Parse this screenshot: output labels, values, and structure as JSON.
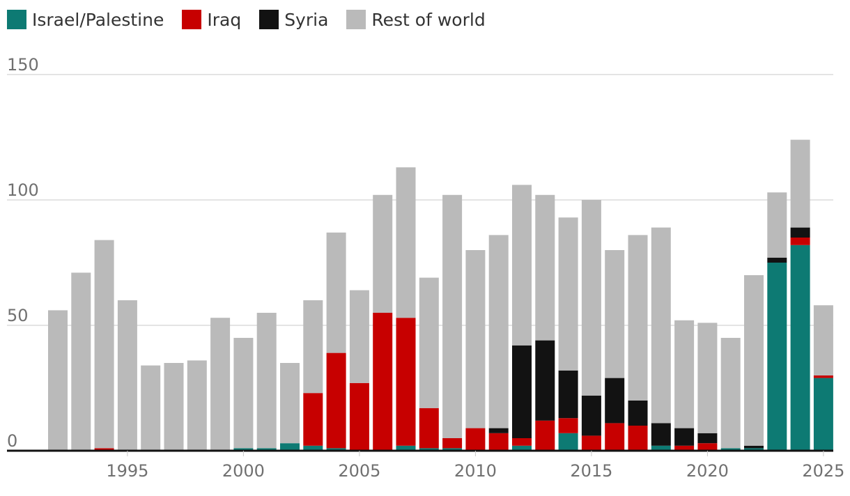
{
  "legend": [
    {
      "label": "Israel/Palestine",
      "color": "#0d7a73"
    },
    {
      "label": "Iraq",
      "color": "#c70000"
    },
    {
      "label": "Syria",
      "color": "#121212"
    },
    {
      "label": "Rest of world",
      "color": "#bababa"
    }
  ],
  "chart_data": {
    "type": "bar",
    "stacked": true,
    "categories": [
      1992,
      1993,
      1994,
      1995,
      1996,
      1997,
      1998,
      1999,
      2000,
      2001,
      2002,
      2003,
      2004,
      2005,
      2006,
      2007,
      2008,
      2009,
      2010,
      2011,
      2012,
      2013,
      2014,
      2015,
      2016,
      2017,
      2018,
      2019,
      2020,
      2021,
      2022,
      2023,
      2024,
      2025
    ],
    "x_tick_labels": [
      "1995",
      "2000",
      "2005",
      "2010",
      "2015",
      "2020",
      "2025"
    ],
    "x_tick_values": [
      1995,
      2000,
      2005,
      2010,
      2015,
      2020,
      2025
    ],
    "y_ticks": [
      0,
      50,
      100,
      150
    ],
    "y_tick_labels": [
      "0",
      "50",
      "100",
      "150"
    ],
    "ylim": [
      0,
      150
    ],
    "grid": true,
    "legend_position": "top-left",
    "series": [
      {
        "name": "Israel/Palestine",
        "color": "#0d7a73",
        "values": [
          0,
          0,
          0,
          0,
          0,
          0,
          0,
          0,
          1,
          1,
          3,
          2,
          1,
          0,
          0,
          2,
          1,
          1,
          0,
          0,
          2,
          0,
          7,
          0,
          0,
          0,
          2,
          0,
          0,
          1,
          1,
          75,
          82,
          29
        ]
      },
      {
        "name": "Iraq",
        "color": "#c70000",
        "values": [
          0,
          0,
          1,
          0,
          0,
          0,
          0,
          0,
          0,
          0,
          0,
          21,
          38,
          27,
          55,
          51,
          16,
          4,
          9,
          7,
          3,
          12,
          6,
          6,
          11,
          10,
          0,
          2,
          3,
          0,
          0,
          0,
          3,
          1
        ]
      },
      {
        "name": "Syria",
        "color": "#121212",
        "values": [
          0,
          0,
          0,
          0,
          0,
          0,
          0,
          0,
          0,
          0,
          0,
          0,
          0,
          0,
          0,
          0,
          0,
          0,
          0,
          2,
          37,
          32,
          19,
          16,
          18,
          10,
          9,
          7,
          4,
          0,
          1,
          2,
          4,
          0
        ]
      },
      {
        "name": "Rest of world",
        "color": "#bababa",
        "values": [
          56,
          71,
          83,
          60,
          34,
          35,
          36,
          53,
          44,
          54,
          32,
          37,
          48,
          37,
          47,
          60,
          52,
          97,
          71,
          77,
          64,
          58,
          61,
          78,
          51,
          66,
          78,
          43,
          44,
          44,
          68,
          26,
          35,
          28
        ]
      }
    ]
  }
}
